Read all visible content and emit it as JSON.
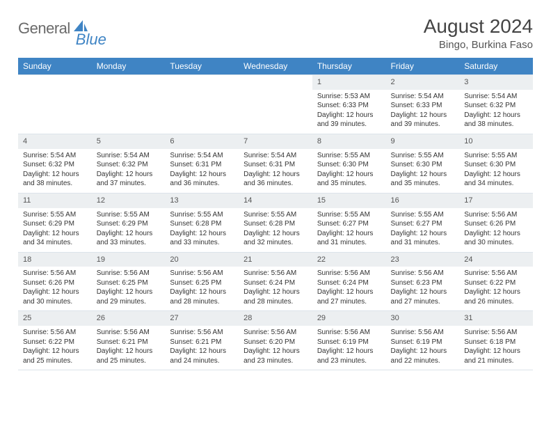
{
  "brand": {
    "word1": "General",
    "word2": "Blue",
    "logo_color": "#3f84c4",
    "text_color": "#6a6a6a"
  },
  "header": {
    "title": "August 2024",
    "subtitle": "Bingo, Burkina Faso"
  },
  "calendar": {
    "header_bg": "#3f84c4",
    "header_fg": "#ffffff",
    "daynum_bg": "#eceff1",
    "border_color": "#dce3ea",
    "day_names": [
      "Sunday",
      "Monday",
      "Tuesday",
      "Wednesday",
      "Thursday",
      "Friday",
      "Saturday"
    ],
    "first_weekday": 4,
    "days_in_month": 31,
    "cells": {
      "1": {
        "sunrise": "5:53 AM",
        "sunset": "6:33 PM",
        "daylight": "12 hours and 39 minutes."
      },
      "2": {
        "sunrise": "5:54 AM",
        "sunset": "6:33 PM",
        "daylight": "12 hours and 39 minutes."
      },
      "3": {
        "sunrise": "5:54 AM",
        "sunset": "6:32 PM",
        "daylight": "12 hours and 38 minutes."
      },
      "4": {
        "sunrise": "5:54 AM",
        "sunset": "6:32 PM",
        "daylight": "12 hours and 38 minutes."
      },
      "5": {
        "sunrise": "5:54 AM",
        "sunset": "6:32 PM",
        "daylight": "12 hours and 37 minutes."
      },
      "6": {
        "sunrise": "5:54 AM",
        "sunset": "6:31 PM",
        "daylight": "12 hours and 36 minutes."
      },
      "7": {
        "sunrise": "5:54 AM",
        "sunset": "6:31 PM",
        "daylight": "12 hours and 36 minutes."
      },
      "8": {
        "sunrise": "5:55 AM",
        "sunset": "6:30 PM",
        "daylight": "12 hours and 35 minutes."
      },
      "9": {
        "sunrise": "5:55 AM",
        "sunset": "6:30 PM",
        "daylight": "12 hours and 35 minutes."
      },
      "10": {
        "sunrise": "5:55 AM",
        "sunset": "6:30 PM",
        "daylight": "12 hours and 34 minutes."
      },
      "11": {
        "sunrise": "5:55 AM",
        "sunset": "6:29 PM",
        "daylight": "12 hours and 34 minutes."
      },
      "12": {
        "sunrise": "5:55 AM",
        "sunset": "6:29 PM",
        "daylight": "12 hours and 33 minutes."
      },
      "13": {
        "sunrise": "5:55 AM",
        "sunset": "6:28 PM",
        "daylight": "12 hours and 33 minutes."
      },
      "14": {
        "sunrise": "5:55 AM",
        "sunset": "6:28 PM",
        "daylight": "12 hours and 32 minutes."
      },
      "15": {
        "sunrise": "5:55 AM",
        "sunset": "6:27 PM",
        "daylight": "12 hours and 31 minutes."
      },
      "16": {
        "sunrise": "5:55 AM",
        "sunset": "6:27 PM",
        "daylight": "12 hours and 31 minutes."
      },
      "17": {
        "sunrise": "5:56 AM",
        "sunset": "6:26 PM",
        "daylight": "12 hours and 30 minutes."
      },
      "18": {
        "sunrise": "5:56 AM",
        "sunset": "6:26 PM",
        "daylight": "12 hours and 30 minutes."
      },
      "19": {
        "sunrise": "5:56 AM",
        "sunset": "6:25 PM",
        "daylight": "12 hours and 29 minutes."
      },
      "20": {
        "sunrise": "5:56 AM",
        "sunset": "6:25 PM",
        "daylight": "12 hours and 28 minutes."
      },
      "21": {
        "sunrise": "5:56 AM",
        "sunset": "6:24 PM",
        "daylight": "12 hours and 28 minutes."
      },
      "22": {
        "sunrise": "5:56 AM",
        "sunset": "6:24 PM",
        "daylight": "12 hours and 27 minutes."
      },
      "23": {
        "sunrise": "5:56 AM",
        "sunset": "6:23 PM",
        "daylight": "12 hours and 27 minutes."
      },
      "24": {
        "sunrise": "5:56 AM",
        "sunset": "6:22 PM",
        "daylight": "12 hours and 26 minutes."
      },
      "25": {
        "sunrise": "5:56 AM",
        "sunset": "6:22 PM",
        "daylight": "12 hours and 25 minutes."
      },
      "26": {
        "sunrise": "5:56 AM",
        "sunset": "6:21 PM",
        "daylight": "12 hours and 25 minutes."
      },
      "27": {
        "sunrise": "5:56 AM",
        "sunset": "6:21 PM",
        "daylight": "12 hours and 24 minutes."
      },
      "28": {
        "sunrise": "5:56 AM",
        "sunset": "6:20 PM",
        "daylight": "12 hours and 23 minutes."
      },
      "29": {
        "sunrise": "5:56 AM",
        "sunset": "6:19 PM",
        "daylight": "12 hours and 23 minutes."
      },
      "30": {
        "sunrise": "5:56 AM",
        "sunset": "6:19 PM",
        "daylight": "12 hours and 22 minutes."
      },
      "31": {
        "sunrise": "5:56 AM",
        "sunset": "6:18 PM",
        "daylight": "12 hours and 21 minutes."
      }
    },
    "labels": {
      "sunrise": "Sunrise:",
      "sunset": "Sunset:",
      "daylight": "Daylight:"
    }
  }
}
